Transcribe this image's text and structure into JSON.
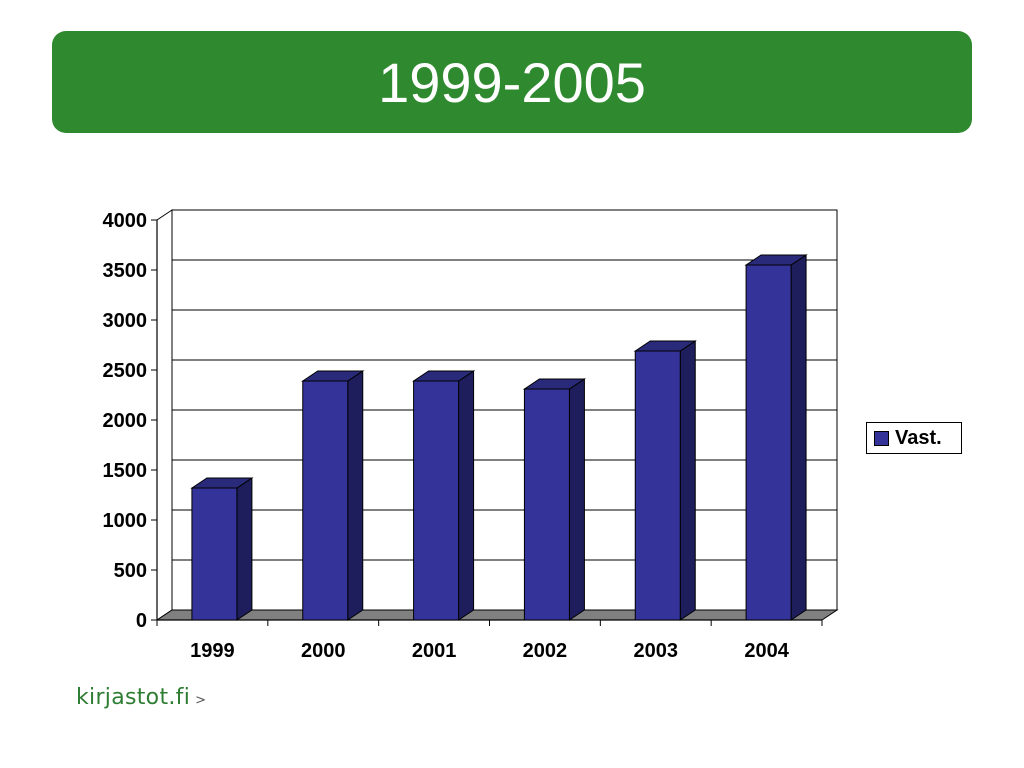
{
  "slide": {
    "title": "1999-2005",
    "footer_logo": "kirjastot.fi",
    "footer_arrow": ">"
  },
  "colors": {
    "banner": "#2f8a2f",
    "bar_front": "#333399",
    "bar_side": "#1e1e5c",
    "bar_top": "#2a2a7a",
    "floor": "#808080"
  },
  "chart_data": {
    "type": "bar",
    "title": "",
    "xlabel": "",
    "ylabel": "",
    "categories": [
      "1999",
      "2000",
      "2001",
      "2002",
      "2003",
      "2004"
    ],
    "series": [
      {
        "name": "Vast.",
        "values": [
          1320,
          2390,
          2390,
          2310,
          2690,
          3550
        ]
      }
    ],
    "ylim": [
      0,
      4000
    ],
    "yticks": [
      0,
      500,
      1000,
      1500,
      2000,
      2500,
      3000,
      3500,
      4000
    ],
    "grid": true,
    "legend": "right",
    "style": "3d-column"
  }
}
